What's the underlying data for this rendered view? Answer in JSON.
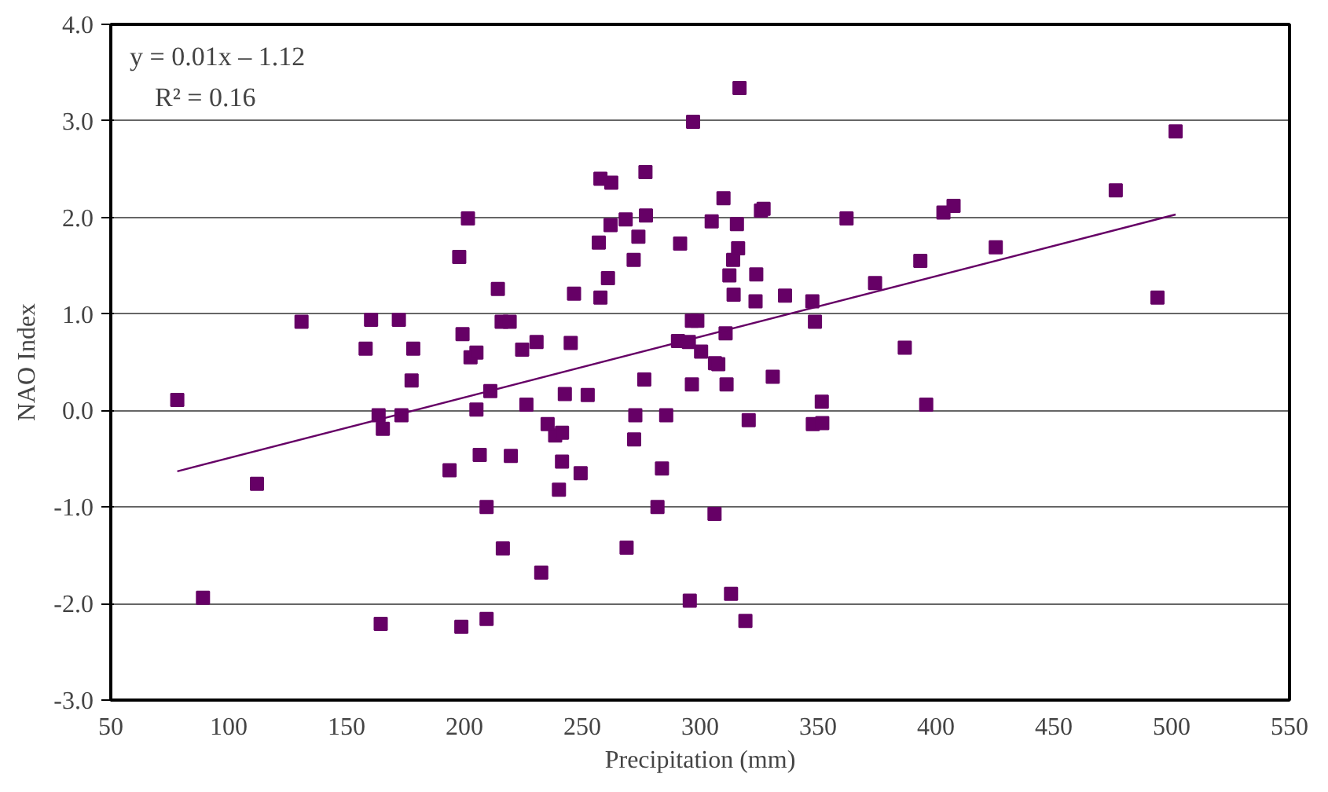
{
  "chart_data": {
    "type": "scatter",
    "xlabel": "Precipitation (mm)",
    "ylabel": "NAO Index",
    "annotations": [
      "y = 0.01x – 1.12",
      "R² = 0.16"
    ],
    "xlim": [
      50,
      550
    ],
    "xticks": [
      50,
      100,
      150,
      200,
      250,
      300,
      350,
      400,
      450,
      500,
      550
    ],
    "ylim": [
      -3,
      4
    ],
    "yticks": [
      {
        "value": -3,
        "label": "-3.0"
      },
      {
        "value": -2,
        "label": "-2.0"
      },
      {
        "value": -1,
        "label": "-1.0"
      },
      {
        "value": 0,
        "label": "0.0"
      },
      {
        "value": 1,
        "label": "1.0"
      },
      {
        "value": 2,
        "label": "2.0"
      },
      {
        "value": 3,
        "label": "3.0"
      },
      {
        "value": 4,
        "label": "4.0"
      }
    ],
    "grid": "y",
    "marker": "square",
    "series": [
      {
        "color": "#660066",
        "x": [
          78.2,
          89.1,
          112.0,
          130.9,
          158.1,
          160.4,
          163.6,
          165.4,
          164.5,
          172.2,
          173.3,
          178.3,
          177.6,
          193.7,
          197.8,
          199.2,
          198.7,
          201.5,
          202.6,
          205.1,
          205.1,
          206.5,
          209.4,
          209.4,
          211.0,
          214.2,
          215.8,
          219.2,
          216.3,
          219.7,
          224.5,
          226.3,
          230.6,
          232.6,
          235.3,
          238.5,
          241.4,
          240.1,
          241.4,
          242.6,
          245.1,
          246.5,
          249.3,
          252.3,
          257.7,
          262.3,
          262.0,
          257.0,
          260.9,
          257.7,
          268.4,
          276.8,
          277.0,
          273.8,
          271.8,
          276.3,
          272.5,
          272.0,
          285.6,
          283.8,
          281.9,
          268.8,
          291.5,
          297.0,
          296.5,
          298.8,
          290.6,
          295.2,
          300.4,
          296.5,
          306.3,
          307.7,
          306.1,
          295.6,
          304.9,
          309.9,
          316.7,
          315.6,
          316.1,
          314.0,
          312.4,
          314.2,
          310.8,
          311.2,
          320.6,
          313.1,
          319.2,
          323.8,
          323.5,
          325.8,
          326.9,
          330.8,
          336.0,
          347.6,
          348.7,
          347.8,
          351.6,
          351.8,
          362.1,
          374.2,
          386.8,
          393.4,
          395.9,
          403.2,
          407.5,
          425.4,
          476.3,
          494.0,
          501.7
        ],
        "values": [
          0.11,
          -1.94,
          -0.76,
          0.92,
          0.64,
          0.94,
          -0.05,
          -0.19,
          -2.21,
          0.94,
          -0.05,
          0.64,
          0.31,
          -0.62,
          1.59,
          0.79,
          -2.24,
          1.99,
          0.55,
          0.6,
          0.01,
          -0.46,
          -1.0,
          -2.16,
          0.2,
          1.26,
          0.92,
          0.92,
          -1.43,
          -0.47,
          0.63,
          0.06,
          0.71,
          -1.68,
          -0.14,
          -0.26,
          -0.23,
          -0.82,
          -0.53,
          0.17,
          0.7,
          1.21,
          -0.65,
          0.16,
          2.4,
          2.36,
          1.92,
          1.74,
          1.37,
          1.17,
          1.98,
          2.47,
          2.02,
          1.8,
          1.56,
          0.32,
          -0.05,
          -0.3,
          -0.05,
          -0.6,
          -1.0,
          -1.42,
          1.73,
          2.99,
          0.93,
          0.93,
          0.72,
          0.71,
          0.61,
          0.27,
          0.49,
          0.48,
          -1.07,
          -1.97,
          1.96,
          2.2,
          3.34,
          1.93,
          1.68,
          1.56,
          1.4,
          1.2,
          0.8,
          0.27,
          -0.1,
          -1.9,
          -2.18,
          1.41,
          1.13,
          2.07,
          2.09,
          0.35,
          1.19,
          1.13,
          0.92,
          -0.14,
          0.09,
          -0.13,
          1.99,
          1.32,
          0.65,
          1.55,
          0.06,
          2.05,
          2.12,
          1.69,
          2.28,
          1.17,
          2.89
        ]
      },
      {
        "type": "line",
        "color": "#660066",
        "marker": "none",
        "x": [
          78.2,
          501.7
        ],
        "values": [
          -0.63,
          2.03
        ]
      }
    ]
  }
}
